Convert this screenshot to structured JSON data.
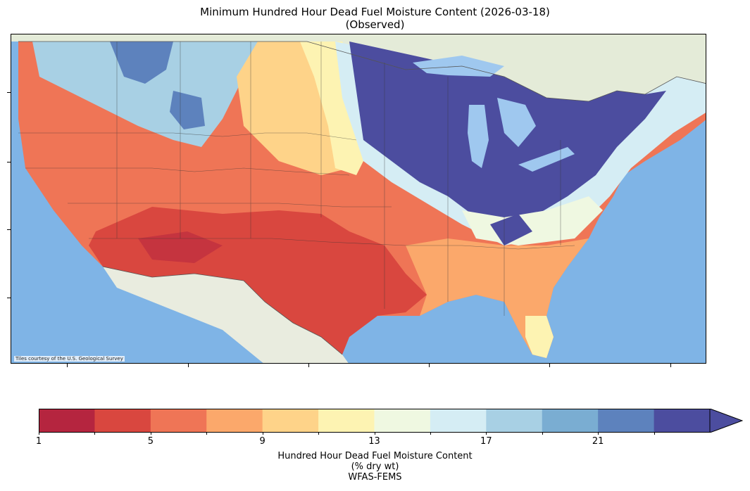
{
  "title": {
    "line1": "Minimum Hundred Hour Dead Fuel Moisture Content (2026-03-18)",
    "line2": "(Observed)"
  },
  "map": {
    "credit": "Tiles courtesy of the U.S. Geological Survey",
    "ocean_color": "#7fb4e6",
    "land_color": "#e7ecd9"
  },
  "colorbar": {
    "title_line1": "Hundred Hour Dead Fuel Moisture Content",
    "title_line2": "(% dry wt)",
    "title_line3": "WFAS-FEMS",
    "tick_labels": [
      "1",
      "5",
      "9",
      "13",
      "17",
      "21"
    ],
    "bounds": [
      1,
      3,
      5,
      7,
      9,
      11,
      13,
      15,
      17,
      19,
      21,
      23
    ],
    "colors": [
      "#b5253f",
      "#d9473f",
      "#ef7556",
      "#fba86b",
      "#fed389",
      "#fdf3b2",
      "#eff8e1",
      "#d5edf4",
      "#a8d0e4",
      "#7aadd2",
      "#5d82bd",
      "#4c4d9f"
    ],
    "extend": "max"
  }
}
